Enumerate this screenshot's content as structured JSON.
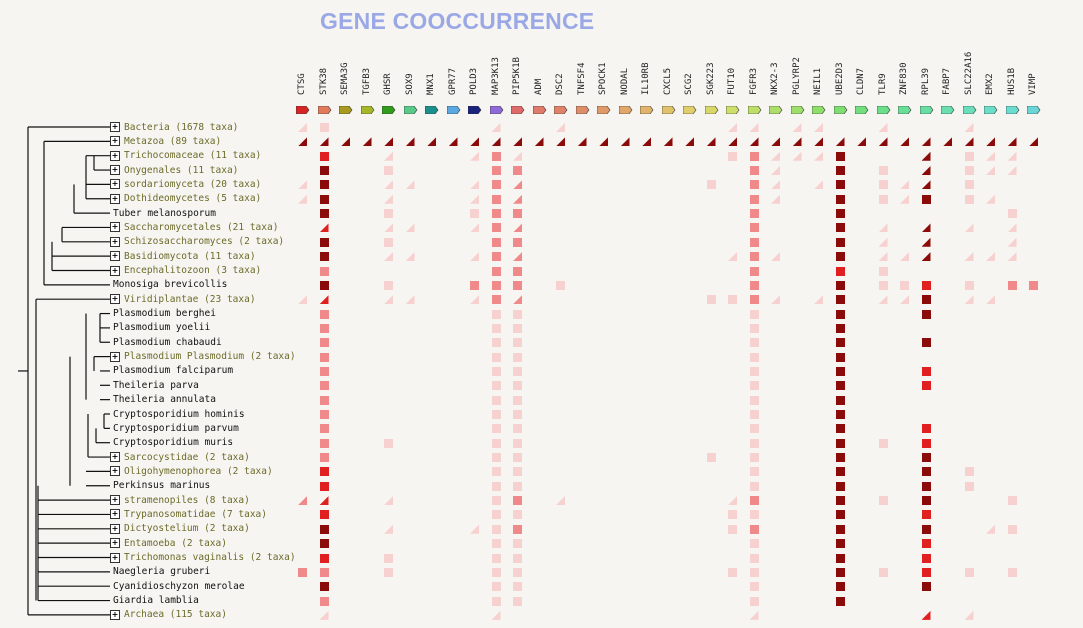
{
  "title": "GENE COOCCURRENCE",
  "genes": [
    {
      "name": "CTSG",
      "color": "#d62424"
    },
    {
      "name": "STK38",
      "color": "#e07a5a"
    },
    {
      "name": "SEMA3G",
      "color": "#a89a1f"
    },
    {
      "name": "TGFB3",
      "color": "#a6b82a"
    },
    {
      "name": "GHSR",
      "color": "#2f9c1b"
    },
    {
      "name": "SOX9",
      "color": "#59c98a"
    },
    {
      "name": "MNX1",
      "color": "#1a8f8c"
    },
    {
      "name": "GPR77",
      "color": "#5aa8e0"
    },
    {
      "name": "POLD3",
      "color": "#1a237e"
    },
    {
      "name": "MAP3K13",
      "color": "#8e6ad8"
    },
    {
      "name": "PIP5K1B",
      "color": "#e06a6a"
    },
    {
      "name": "ADM",
      "color": "#e07a6a"
    },
    {
      "name": "DSC2",
      "color": "#e0826a"
    },
    {
      "name": "TNFSF4",
      "color": "#e08e6a"
    },
    {
      "name": "SPOCK1",
      "color": "#e09a6a"
    },
    {
      "name": "NODAL",
      "color": "#e0a66a"
    },
    {
      "name": "IL10RB",
      "color": "#e0b46a"
    },
    {
      "name": "CXCL5",
      "color": "#e0c26a"
    },
    {
      "name": "SCG2",
      "color": "#e0ce6a"
    },
    {
      "name": "SGK223",
      "color": "#d8d86a"
    },
    {
      "name": "FUT10",
      "color": "#cede6a"
    },
    {
      "name": "FGFR3",
      "color": "#bede6a"
    },
    {
      "name": "NKX2-3",
      "color": "#aede6a"
    },
    {
      "name": "PGLYRP2",
      "color": "#9ede6a"
    },
    {
      "name": "NEIL1",
      "color": "#8ede6a"
    },
    {
      "name": "UBE2D3",
      "color": "#7ede72"
    },
    {
      "name": "CLDN7",
      "color": "#72de7e"
    },
    {
      "name": "TLR9",
      "color": "#6ade8a"
    },
    {
      "name": "ZNF830",
      "color": "#6ade96"
    },
    {
      "name": "RPL39",
      "color": "#6adea2"
    },
    {
      "name": "FABP7",
      "color": "#6adeae"
    },
    {
      "name": "SLC22A16",
      "color": "#6adeba"
    },
    {
      "name": "EMX2",
      "color": "#6adec6"
    },
    {
      "name": "HUS1B",
      "color": "#6adcd0"
    },
    {
      "name": "VIMP",
      "color": "#6ad6d8"
    }
  ],
  "taxa": [
    {
      "label": "Bacteria (1678 taxa)",
      "expandable": true
    },
    {
      "label": "Metazoa (89 taxa)",
      "expandable": true
    },
    {
      "label": "Trichocomaceae (11 taxa)",
      "expandable": true
    },
    {
      "label": "Onygenales (11 taxa)",
      "expandable": true
    },
    {
      "label": "sordariomyceta (20 taxa)",
      "expandable": true
    },
    {
      "label": "Dothideomycetes (5 taxa)",
      "expandable": true
    },
    {
      "label": "Tuber melanosporum",
      "expandable": false
    },
    {
      "label": "Saccharomycetales (21 taxa)",
      "expandable": true
    },
    {
      "label": "Schizosaccharomyces (2 taxa)",
      "expandable": true
    },
    {
      "label": "Basidiomycota (11 taxa)",
      "expandable": true
    },
    {
      "label": "Encephalitozoon (3 taxa)",
      "expandable": true
    },
    {
      "label": "Monosiga brevicollis",
      "expandable": false
    },
    {
      "label": "Viridiplantae (23 taxa)",
      "expandable": true
    },
    {
      "label": "Plasmodium berghei",
      "expandable": false
    },
    {
      "label": "Plasmodium yoelii",
      "expandable": false
    },
    {
      "label": "Plasmodium chabaudi",
      "expandable": false
    },
    {
      "label": "Plasmodium Plasmodium (2 taxa)",
      "expandable": true
    },
    {
      "label": "Plasmodium falciparum",
      "expandable": false
    },
    {
      "label": "Theileria parva",
      "expandable": false
    },
    {
      "label": "Theileria annulata",
      "expandable": false
    },
    {
      "label": "Cryptosporidium hominis",
      "expandable": false
    },
    {
      "label": "Cryptosporidium parvum",
      "expandable": false
    },
    {
      "label": "Cryptosporidium muris",
      "expandable": false
    },
    {
      "label": "Sarcocystidae (2 taxa)",
      "expandable": true
    },
    {
      "label": "Oligohymenophorea (2 taxa)",
      "expandable": true
    },
    {
      "label": "Perkinsus marinus",
      "expandable": false
    },
    {
      "label": "stramenopiles (8 taxa)",
      "expandable": true
    },
    {
      "label": "Trypanosomatidae (7 taxa)",
      "expandable": true
    },
    {
      "label": "Dictyostelium (2 taxa)",
      "expandable": true
    },
    {
      "label": "Entamoeba (2 taxa)",
      "expandable": true
    },
    {
      "label": "Trichomonas vaginalis (2 taxa)",
      "expandable": true
    },
    {
      "label": "Naegleria gruberi",
      "expandable": false
    },
    {
      "label": "Cyanidioschyzon merolae",
      "expandable": false
    },
    {
      "label": "Giardia lamblia",
      "expandable": false
    },
    {
      "label": "Archaea (115 taxa)",
      "expandable": true
    }
  ],
  "legend_colors": {
    "strong": "#8b0a0a",
    "high": "#e02020",
    "medium": "#f08a8a",
    "low": "#f7d0d0",
    "faint": "#f3e3e3"
  },
  "matrix": [
    [
      "t1",
      "s1",
      "",
      "",
      "",
      "",
      "",
      "",
      "",
      "t1",
      "",
      "",
      "t1",
      "",
      "",
      "",
      "",
      "",
      "",
      "",
      "t1",
      "t1",
      "",
      "t1",
      "t1",
      "",
      "",
      "t1",
      "",
      "",
      "",
      "t1",
      "",
      "",
      ""
    ],
    [
      "T",
      "T",
      "T",
      "T",
      "T",
      "T",
      "T",
      "T",
      "T",
      "T",
      "T",
      "T",
      "T",
      "T",
      "T",
      "T",
      "T",
      "T",
      "T",
      "T",
      "T",
      "T",
      "T",
      "T",
      "T",
      "T",
      "T",
      "T",
      "T",
      "T",
      "T",
      "T",
      "T",
      "T",
      "T"
    ],
    [
      "",
      "s3",
      "",
      "",
      "t1",
      "",
      "",
      "",
      "t1",
      "s2",
      "t1",
      "",
      "",
      "",
      "",
      "",
      "",
      "",
      "",
      "",
      "s1",
      "s2",
      "t1",
      "t1",
      "t1",
      "S",
      "",
      "",
      "",
      "T3",
      "",
      "s1",
      "t1",
      "t1",
      ""
    ],
    [
      "",
      "S",
      "",
      "",
      "s1",
      "",
      "",
      "",
      "",
      "s2",
      "s2",
      "",
      "",
      "",
      "",
      "",
      "",
      "",
      "",
      "",
      "",
      "s2",
      "t1",
      "",
      "",
      "S",
      "",
      "s1",
      "",
      "T3",
      "",
      "s1",
      "t1",
      "t1",
      ""
    ],
    [
      "t1",
      "S",
      "",
      "",
      "t1",
      "t1",
      "",
      "",
      "t1",
      "s2",
      "t2",
      "",
      "",
      "",
      "",
      "",
      "",
      "",
      "",
      "s1",
      "",
      "s2",
      "t1",
      "",
      "t1",
      "S",
      "",
      "s1",
      "t1",
      "T3",
      "",
      "s1",
      "",
      ""
    ],
    [
      "t1",
      "S",
      "",
      "",
      "t1",
      "",
      "",
      "",
      "t1",
      "s2",
      "t2",
      "",
      "",
      "",
      "",
      "",
      "",
      "",
      "",
      "",
      "",
      "s2",
      "t1",
      "",
      "",
      "S",
      "",
      "s1",
      "t1",
      "S",
      "",
      "s1",
      "t1",
      "",
      ""
    ],
    [
      "",
      "S",
      "",
      "",
      "s1",
      "",
      "",
      "",
      "s1",
      "s2",
      "s2",
      "",
      "",
      "",
      "",
      "",
      "",
      "",
      "",
      "",
      "",
      "s2",
      "",
      "",
      "",
      "S",
      "",
      "",
      "",
      "",
      "",
      "",
      "",
      "s1",
      ""
    ],
    [
      "",
      "t3",
      "",
      "",
      "t1",
      "t1",
      "",
      "",
      "t1",
      "s2",
      "t2",
      "",
      "",
      "",
      "",
      "",
      "",
      "",
      "",
      "",
      "",
      "s2",
      "",
      "",
      "",
      "S",
      "",
      "t1",
      "",
      "T3",
      "",
      "t1",
      "",
      "t1",
      ""
    ],
    [
      "",
      "S",
      "",
      "",
      "s1",
      "",
      "",
      "",
      "",
      "s2",
      "s2",
      "",
      "",
      "",
      "",
      "",
      "",
      "",
      "",
      "",
      "",
      "s2",
      "",
      "",
      "",
      "S",
      "",
      "t1",
      "",
      "T3",
      "",
      "",
      "",
      "t1",
      ""
    ],
    [
      "",
      "S",
      "",
      "",
      "t1",
      "t1",
      "",
      "",
      "t1",
      "s2",
      "t2",
      "",
      "",
      "",
      "",
      "",
      "",
      "",
      "",
      "",
      "t1",
      "s2",
      "t1",
      "",
      "",
      "S",
      "",
      "t1",
      "t1",
      "T3",
      "",
      "t1",
      "t1",
      "t1",
      ""
    ],
    [
      "",
      "s2",
      "",
      "",
      "",
      "",
      "",
      "",
      "",
      "s2",
      "s2",
      "",
      "",
      "",
      "",
      "",
      "",
      "",
      "",
      "",
      "",
      "s2",
      "",
      "",
      "",
      "s3",
      "",
      "s1",
      "",
      "",
      "",
      "",
      "",
      "",
      ""
    ],
    [
      "",
      "S",
      "",
      "",
      "s1",
      "",
      "",
      "",
      "s2",
      "s2",
      "s2",
      "",
      "s1",
      "",
      "",
      "",
      "",
      "",
      "",
      "",
      "",
      "s2",
      "",
      "",
      "",
      "S",
      "",
      "s1",
      "s1",
      "s3",
      "",
      "s1",
      "",
      "s2",
      "s2"
    ],
    [
      "t1",
      "t3",
      "",
      "",
      "t1",
      "t1",
      "",
      "",
      "t1",
      "s2",
      "t2",
      "",
      "",
      "",
      "",
      "",
      "",
      "",
      "",
      "s1",
      "s1",
      "s2",
      "t1",
      "",
      "t1",
      "S",
      "",
      "t1",
      "t1",
      "S",
      "",
      "t1",
      "t1",
      "",
      ""
    ],
    [
      "",
      "s2",
      "",
      "",
      "",
      "",
      "",
      "",
      "",
      "s1",
      "s1",
      "",
      "",
      "",
      "",
      "",
      "",
      "",
      "",
      "",
      "",
      "s1",
      "",
      "",
      "",
      "S",
      "",
      "",
      "",
      "S",
      "",
      "",
      "",
      "",
      ""
    ],
    [
      "",
      "s2",
      "",
      "",
      "",
      "",
      "",
      "",
      "",
      "s1",
      "s1",
      "",
      "",
      "",
      "",
      "",
      "",
      "",
      "",
      "",
      "",
      "s1",
      "",
      "",
      "",
      "S",
      "",
      "",
      "",
      "",
      "",
      "",
      "",
      "",
      ""
    ],
    [
      "",
      "s2",
      "",
      "",
      "",
      "",
      "",
      "",
      "",
      "s1",
      "s1",
      "",
      "",
      "",
      "",
      "",
      "",
      "",
      "",
      "",
      "",
      "s1",
      "",
      "",
      "",
      "S",
      "",
      "",
      "",
      "S",
      "",
      "",
      "",
      "",
      ""
    ],
    [
      "",
      "s2",
      "",
      "",
      "",
      "",
      "",
      "",
      "",
      "s1",
      "s1",
      "",
      "",
      "",
      "",
      "",
      "",
      "",
      "",
      "",
      "",
      "s1",
      "",
      "",
      "",
      "S",
      "",
      "",
      "",
      "",
      "",
      "",
      "",
      "",
      ""
    ],
    [
      "",
      "s2",
      "",
      "",
      "",
      "",
      "",
      "",
      "",
      "s1",
      "s1",
      "",
      "",
      "",
      "",
      "",
      "",
      "",
      "",
      "",
      "",
      "s1",
      "",
      "",
      "",
      "S",
      "",
      "",
      "",
      "s3",
      "",
      "",
      "",
      "",
      ""
    ],
    [
      "",
      "s2",
      "",
      "",
      "",
      "",
      "",
      "",
      "",
      "s1",
      "s1",
      "",
      "",
      "",
      "",
      "",
      "",
      "",
      "",
      "",
      "",
      "s1",
      "",
      "",
      "",
      "S",
      "",
      "",
      "",
      "s3",
      "",
      "",
      "",
      "",
      ""
    ],
    [
      "",
      "s2",
      "",
      "",
      "",
      "",
      "",
      "",
      "",
      "s1",
      "s1",
      "",
      "",
      "",
      "",
      "",
      "",
      "",
      "",
      "",
      "",
      "s1",
      "",
      "",
      "",
      "S",
      "",
      "",
      "",
      "",
      "",
      "",
      "",
      "",
      ""
    ],
    [
      "",
      "s2",
      "",
      "",
      "",
      "",
      "",
      "",
      "",
      "s1",
      "s1",
      "",
      "",
      "",
      "",
      "",
      "",
      "",
      "",
      "",
      "",
      "s1",
      "",
      "",
      "",
      "S",
      "",
      "",
      "",
      "",
      "",
      "",
      "",
      "",
      ""
    ],
    [
      "",
      "s2",
      "",
      "",
      "",
      "",
      "",
      "",
      "",
      "s1",
      "s1",
      "",
      "",
      "",
      "",
      "",
      "",
      "",
      "",
      "",
      "",
      "s1",
      "",
      "",
      "",
      "S",
      "",
      "",
      "",
      "s3",
      "",
      "",
      "",
      "",
      ""
    ],
    [
      "",
      "s2",
      "",
      "",
      "s1",
      "",
      "",
      "",
      "",
      "s1",
      "s1",
      "",
      "",
      "",
      "",
      "",
      "",
      "",
      "",
      "",
      "",
      "s1",
      "",
      "",
      "",
      "S",
      "",
      "s1",
      "",
      "s3",
      "",
      "",
      "",
      "",
      ""
    ],
    [
      "",
      "s2",
      "",
      "",
      "",
      "",
      "",
      "",
      "",
      "s1",
      "s1",
      "",
      "",
      "",
      "",
      "",
      "",
      "",
      "",
      "s1",
      "",
      "s1",
      "",
      "",
      "",
      "S",
      "",
      "",
      "",
      "S",
      "",
      "",
      "",
      "",
      ""
    ],
    [
      "",
      "s3",
      "",
      "",
      "",
      "",
      "",
      "",
      "",
      "s1",
      "s1",
      "",
      "",
      "",
      "",
      "",
      "",
      "",
      "",
      "",
      "",
      "s1",
      "",
      "",
      "",
      "S",
      "",
      "",
      "",
      "S",
      "",
      "s1",
      "",
      "",
      ""
    ],
    [
      "",
      "s3",
      "",
      "",
      "",
      "",
      "",
      "",
      "",
      "s1",
      "s1",
      "",
      "",
      "",
      "",
      "",
      "",
      "",
      "",
      "",
      "",
      "s1",
      "",
      "",
      "",
      "S",
      "",
      "",
      "",
      "S",
      "",
      "s1",
      "",
      "",
      ""
    ],
    [
      "t2",
      "t3",
      "",
      "",
      "t1",
      "",
      "",
      "",
      "",
      "s1",
      "s2",
      "",
      "t1",
      "",
      "",
      "",
      "",
      "",
      "",
      "",
      "t1",
      "s2",
      "",
      "",
      "",
      "S",
      "",
      "s1",
      "",
      "S",
      "",
      "",
      "",
      "s1",
      ""
    ],
    [
      "",
      "s3",
      "",
      "",
      "",
      "",
      "",
      "",
      "",
      "s1",
      "s1",
      "",
      "",
      "",
      "",
      "",
      "",
      "",
      "",
      "",
      "s1",
      "s1",
      "",
      "",
      "",
      "S",
      "",
      "",
      "",
      "s3",
      "",
      "",
      "",
      "",
      ""
    ],
    [
      "",
      "S",
      "",
      "",
      "t1",
      "",
      "",
      "",
      "t1",
      "s1",
      "s2",
      "",
      "",
      "",
      "",
      "",
      "",
      "",
      "",
      "",
      "s1",
      "s2",
      "",
      "",
      "",
      "S",
      "",
      "",
      "",
      "S",
      "",
      "",
      "t1",
      "s1",
      ""
    ],
    [
      "",
      "S",
      "",
      "",
      "",
      "",
      "",
      "",
      "",
      "s1",
      "s1",
      "",
      "",
      "",
      "",
      "",
      "",
      "",
      "",
      "",
      "",
      "s1",
      "",
      "",
      "",
      "S",
      "",
      "",
      "",
      "s3",
      "",
      "",
      "",
      "",
      ""
    ],
    [
      "",
      "s3",
      "",
      "",
      "s1",
      "",
      "",
      "",
      "",
      "s1",
      "s1",
      "",
      "",
      "",
      "",
      "",
      "",
      "",
      "",
      "",
      "",
      "s1",
      "",
      "",
      "",
      "S",
      "",
      "",
      "",
      "s3",
      "",
      "",
      "",
      "",
      ""
    ],
    [
      "s2",
      "s2",
      "",
      "",
      "s1",
      "",
      "",
      "",
      "",
      "s1",
      "s1",
      "",
      "",
      "",
      "",
      "",
      "",
      "",
      "",
      "",
      "s1",
      "s1",
      "",
      "",
      "",
      "S",
      "",
      "s1",
      "",
      "s3",
      "",
      "s1",
      "",
      "s1",
      ""
    ],
    [
      "",
      "S",
      "",
      "",
      "",
      "",
      "",
      "",
      "",
      "s1",
      "s1",
      "",
      "",
      "",
      "",
      "",
      "",
      "",
      "",
      "",
      "",
      "s1",
      "",
      "",
      "",
      "S",
      "",
      "",
      "",
      "S",
      "",
      "",
      "",
      "",
      ""
    ],
    [
      "",
      "s2",
      "",
      "",
      "",
      "",
      "",
      "",
      "",
      "s1",
      "s1",
      "",
      "",
      "",
      "",
      "",
      "",
      "",
      "",
      "",
      "",
      "s1",
      "",
      "",
      "",
      "S",
      "",
      "",
      "",
      "",
      "",
      "",
      "",
      "",
      ""
    ],
    [
      "",
      "t1",
      "",
      "",
      "",
      "",
      "",
      "",
      "",
      "t1",
      "",
      "",
      "",
      "",
      "",
      "",
      "",
      "",
      "",
      "",
      "",
      "t1",
      "",
      "",
      "",
      "",
      "",
      "",
      "",
      "t3",
      "",
      "t1",
      "",
      "",
      ""
    ]
  ]
}
